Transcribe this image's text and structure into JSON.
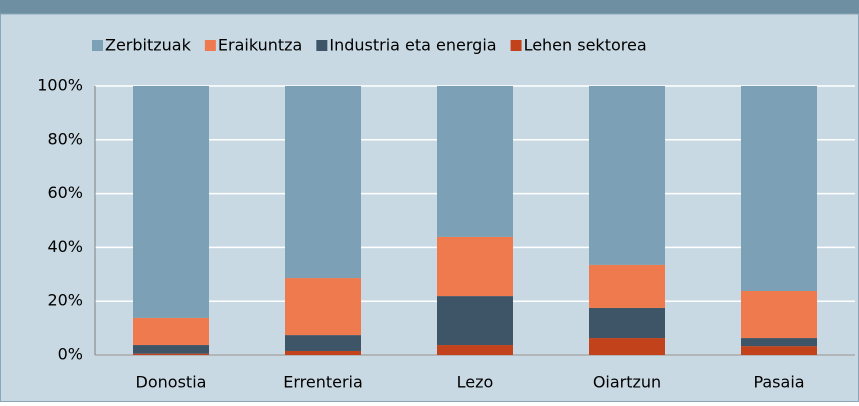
{
  "chart_data": {
    "type": "stacked_bar",
    "categories": [
      "Donostia",
      "Errenteria",
      "Lezo",
      "Oiartzun",
      "Pasaia"
    ],
    "series": [
      {
        "name": "Zerbitzuak",
        "color": "#7ca0b6",
        "values": [
          86.2,
          71.4,
          56.1,
          66.5,
          76.2
        ]
      },
      {
        "name": "Eraikuntza",
        "color": "#ee7a4d",
        "values": [
          10.1,
          21.2,
          22,
          16,
          17.5
        ]
      },
      {
        "name": "Industria eta energia",
        "color": "#3e5567",
        "values": [
          3.2,
          5.9,
          18.2,
          11.2,
          3
        ]
      },
      {
        "name": "Lehen sektorea",
        "color": "#c2431b",
        "values": [
          0.5,
          1.5,
          3.7,
          6.3,
          3.3
        ]
      }
    ],
    "ylim": [
      0,
      100
    ],
    "yticks": [
      {
        "value": 0,
        "label": "0%"
      },
      {
        "value": 20,
        "label": "20%"
      },
      {
        "value": 40,
        "label": "40%"
      },
      {
        "value": 60,
        "label": "60%"
      },
      {
        "value": 80,
        "label": "80%"
      },
      {
        "value": 100,
        "label": "100%"
      }
    ],
    "grid": true,
    "legend": "top"
  }
}
